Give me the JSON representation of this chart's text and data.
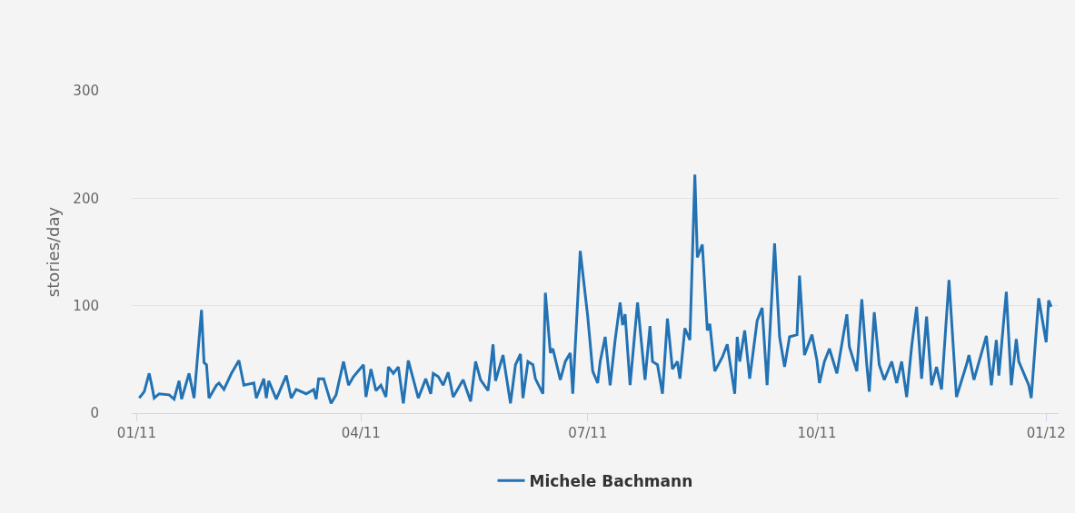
{
  "chart_data": {
    "type": "line",
    "ylabel": "stories/day",
    "x": [
      "2011-01-02",
      "2011-01-04",
      "2011-01-06",
      "2011-01-07",
      "2011-01-08",
      "2011-01-10",
      "2011-01-14",
      "2011-01-16",
      "2011-01-18",
      "2011-01-19",
      "2011-01-22",
      "2011-01-24",
      "2011-01-27",
      "2011-01-28",
      "2011-01-29",
      "2011-01-30",
      "2011-02-02",
      "2011-02-03",
      "2011-02-05",
      "2011-02-08",
      "2011-02-11",
      "2011-02-13",
      "2011-02-17",
      "2011-02-18",
      "2011-02-21",
      "2011-02-22",
      "2011-02-23",
      "2011-02-26",
      "2011-03-02",
      "2011-03-04",
      "2011-03-06",
      "2011-03-10",
      "2011-03-13",
      "2011-03-14",
      "2011-03-15",
      "2011-03-17",
      "2011-03-20",
      "2011-03-22",
      "2011-03-25",
      "2011-03-27",
      "2011-03-29",
      "2011-04-02",
      "2011-04-03",
      "2011-04-05",
      "2011-04-07",
      "2011-04-09",
      "2011-04-11",
      "2011-04-12",
      "2011-04-14",
      "2011-04-16",
      "2011-04-18",
      "2011-04-20",
      "2011-04-24",
      "2011-04-27",
      "2011-04-29",
      "2011-04-30",
      "2011-05-02",
      "2011-05-04",
      "2011-05-06",
      "2011-05-08",
      "2011-05-12",
      "2011-05-15",
      "2011-05-17",
      "2011-05-19",
      "2011-05-22",
      "2011-05-24",
      "2011-05-25",
      "2011-05-28",
      "2011-05-31",
      "2011-06-02",
      "2011-06-04",
      "2011-06-05",
      "2011-06-07",
      "2011-06-09",
      "2011-06-10",
      "2011-06-13",
      "2011-06-14",
      "2011-06-16",
      "2011-06-17",
      "2011-06-20",
      "2011-06-22",
      "2011-06-24",
      "2011-06-25",
      "2011-06-28",
      "2011-07-01",
      "2011-07-03",
      "2011-07-05",
      "2011-07-06",
      "2011-07-08",
      "2011-07-10",
      "2011-07-12",
      "2011-07-14",
      "2011-07-15",
      "2011-07-16",
      "2011-07-18",
      "2011-07-21",
      "2011-07-24",
      "2011-07-26",
      "2011-07-27",
      "2011-07-29",
      "2011-07-31",
      "2011-08-02",
      "2011-08-04",
      "2011-08-06",
      "2011-08-07",
      "2011-08-09",
      "2011-08-11",
      "2011-08-13",
      "2011-08-14",
      "2011-08-16",
      "2011-08-18",
      "2011-08-19",
      "2011-08-21",
      "2011-08-24",
      "2011-08-26",
      "2011-08-29",
      "2011-08-30",
      "2011-08-31",
      "2011-09-02",
      "2011-09-04",
      "2011-09-07",
      "2011-09-09",
      "2011-09-11",
      "2011-09-14",
      "2011-09-16",
      "2011-09-18",
      "2011-09-20",
      "2011-09-23",
      "2011-09-24",
      "2011-09-26",
      "2011-09-29",
      "2011-10-01",
      "2011-10-02",
      "2011-10-04",
      "2011-10-06",
      "2011-10-09",
      "2011-10-13",
      "2011-10-14",
      "2011-10-17",
      "2011-10-19",
      "2011-10-21",
      "2011-10-22",
      "2011-10-24",
      "2011-10-26",
      "2011-10-28",
      "2011-10-31",
      "2011-11-02",
      "2011-11-04",
      "2011-11-06",
      "2011-11-08",
      "2011-11-10",
      "2011-11-12",
      "2011-11-14",
      "2011-11-16",
      "2011-11-18",
      "2011-11-20",
      "2011-11-23",
      "2011-11-26",
      "2011-11-30",
      "2011-12-01",
      "2011-12-03",
      "2011-12-08",
      "2011-12-10",
      "2011-12-12",
      "2011-12-13",
      "2011-12-16",
      "2011-12-18",
      "2011-12-20",
      "2011-12-21",
      "2011-12-25",
      "2011-12-26",
      "2011-12-29",
      "2012-01-01",
      "2012-01-02",
      "2012-01-03"
    ],
    "series": [
      {
        "name": "Michele Bachmann",
        "color": "#2272b4",
        "values": [
          14,
          20,
          37,
          26,
          14,
          18,
          17,
          13,
          30,
          13,
          37,
          14,
          96,
          47,
          45,
          14,
          26,
          28,
          22,
          37,
          49,
          26,
          28,
          14,
          32,
          14,
          30,
          13,
          35,
          14,
          22,
          18,
          22,
          13,
          32,
          32,
          9,
          17,
          48,
          26,
          34,
          45,
          15,
          41,
          21,
          26,
          15,
          43,
          37,
          43,
          9,
          49,
          14,
          32,
          18,
          37,
          34,
          26,
          38,
          15,
          31,
          11,
          48,
          31,
          21,
          64,
          30,
          54,
          9,
          45,
          55,
          14,
          48,
          45,
          32,
          18,
          112,
          56,
          60,
          31,
          48,
          56,
          18,
          151,
          90,
          39,
          28,
          48,
          71,
          26,
          68,
          103,
          82,
          92,
          26,
          103,
          31,
          81,
          48,
          45,
          18,
          88,
          41,
          48,
          32,
          79,
          68,
          222,
          145,
          157,
          77,
          83,
          39,
          52,
          64,
          18,
          71,
          48,
          77,
          32,
          86,
          98,
          26,
          158,
          71,
          43,
          71,
          73,
          128,
          54,
          73,
          49,
          28,
          48,
          60,
          37,
          92,
          62,
          39,
          106,
          45,
          20,
          94,
          45,
          31,
          48,
          28,
          48,
          15,
          62,
          99,
          32,
          90,
          26,
          43,
          22,
          124,
          15,
          45,
          54,
          31,
          72,
          26,
          68,
          35,
          113,
          26,
          69,
          48,
          26,
          14,
          107,
          66,
          105,
          99
        ]
      }
    ],
    "xlim": [
      "2010-12-30",
      "2012-01-06"
    ],
    "xticks": [
      {
        "value": "2011-01-01",
        "label": "01/11"
      },
      {
        "value": "2011-04-01",
        "label": "04/11"
      },
      {
        "value": "2011-07-01",
        "label": "07/11"
      },
      {
        "value": "2011-10-01",
        "label": "10/11"
      },
      {
        "value": "2012-01-01",
        "label": "01/12"
      }
    ],
    "ylim": [
      0,
      300
    ],
    "yticks": [
      0,
      100,
      200,
      300
    ],
    "grid": "y",
    "legend": "bottom",
    "marker": "none",
    "line_style": "solid"
  }
}
